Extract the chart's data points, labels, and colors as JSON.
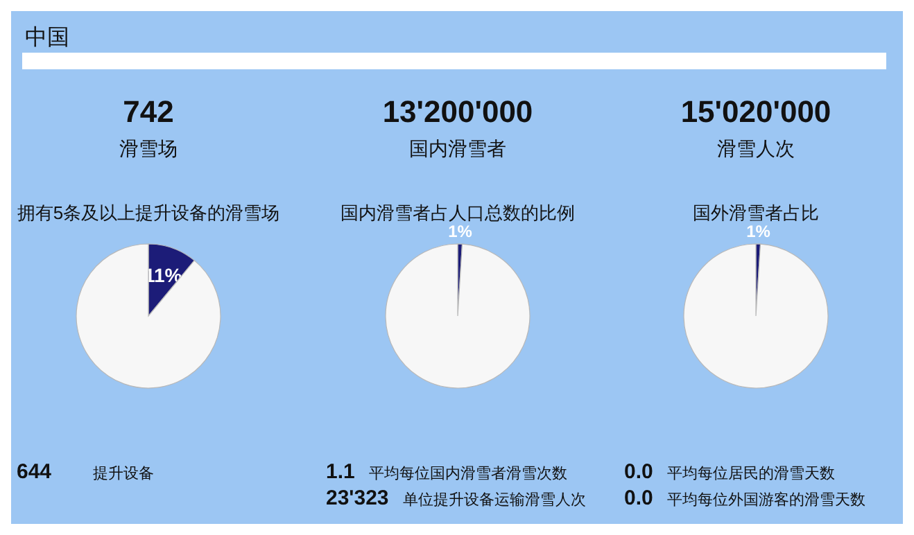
{
  "chart_data": [
    {
      "type": "other",
      "title": "中国"
    },
    {
      "type": "pie",
      "title": "742",
      "subtitle": "滑雪场",
      "categories": [
        null,
        null
      ],
      "values": [
        11,
        89
      ],
      "colors": [
        "#1c1c78",
        "#f7f7f7"
      ],
      "value_labels": [
        "11%",
        null
      ],
      "annotations": [
        "拥有5条及以上提升设备的滑雪场",
        "644",
        "提升设备"
      ]
    },
    {
      "type": "pie",
      "title": "13'200'000",
      "subtitle": "国内滑雪者",
      "categories": [
        null,
        null
      ],
      "values": [
        1,
        99
      ],
      "colors": [
        "#1c1c78",
        "#f7f7f7"
      ],
      "value_labels": [
        "1%",
        null
      ],
      "annotations": [
        "国内滑雪者占人口总数的比例",
        "1.1",
        "平均每位国内滑雪者滑雪次数",
        "23'323",
        "单位提升设备运输滑雪人次"
      ]
    },
    {
      "type": "pie",
      "title": "15'020'000",
      "subtitle": "滑雪人次",
      "categories": [
        null,
        null
      ],
      "values": [
        1,
        99
      ],
      "colors": [
        "#1c1c78",
        "#f7f7f7"
      ],
      "value_labels": [
        "1%",
        null
      ],
      "annotations": [
        "国外滑雪者占比",
        "0.0",
        "平均每位居民的滑雪天数",
        "0.0",
        "平均每位外国游客的滑雪天数"
      ]
    }
  ]
}
